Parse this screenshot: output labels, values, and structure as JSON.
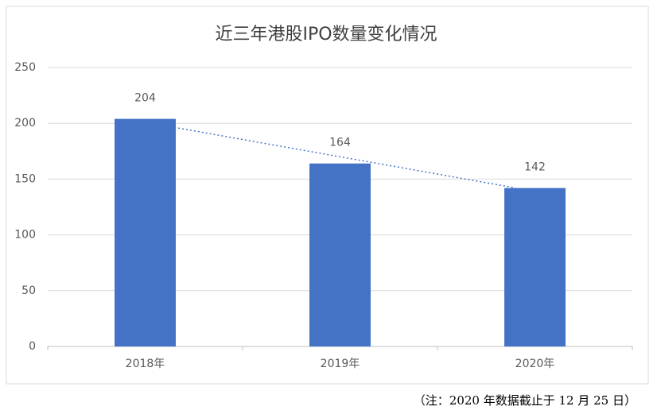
{
  "chart_data": {
    "type": "bar",
    "title": "近三年港股IPO数量变化情况",
    "categories": [
      "2018年",
      "2019年",
      "2020年"
    ],
    "values": [
      204,
      164,
      142
    ],
    "color": "#4472c4",
    "ylim": [
      0,
      250
    ],
    "yticks": [
      0,
      50,
      100,
      150,
      200,
      250
    ],
    "grid": true,
    "trendline": true,
    "footnote": "（注：2020 年数据截止于 12 月 25 日）"
  }
}
